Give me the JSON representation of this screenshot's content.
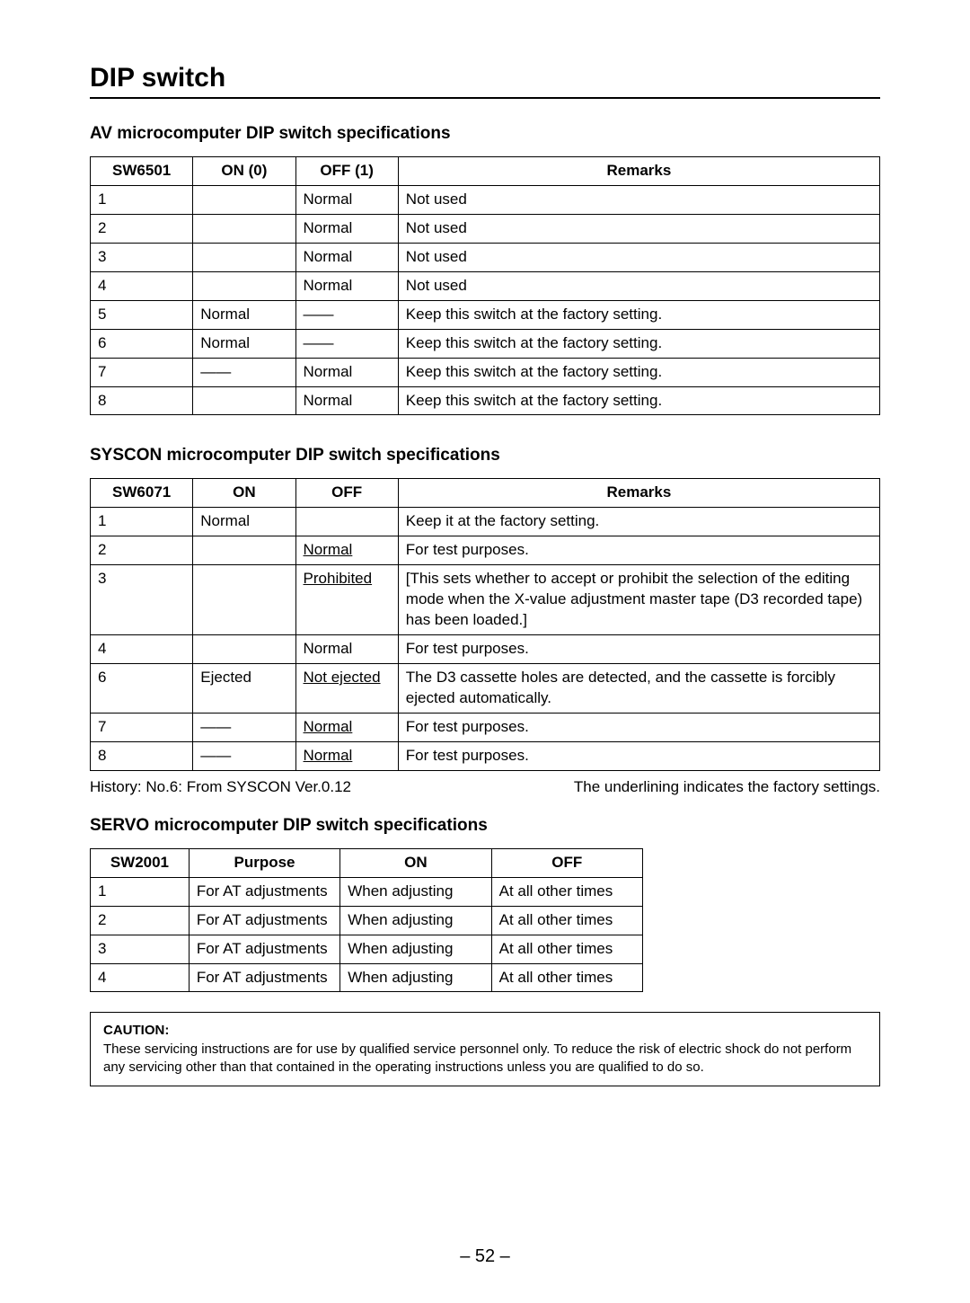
{
  "title": "DIP switch",
  "pageNumber": "– 52 –",
  "av": {
    "heading": "AV microcomputer DIP switch specifications",
    "headers": [
      "SW6501",
      "ON (0)",
      "OFF (1)",
      "Remarks"
    ],
    "rows": [
      {
        "n": "1",
        "on": "",
        "off": "Normal",
        "rem": "Not used",
        "offU": false
      },
      {
        "n": "2",
        "on": "",
        "off": "Normal",
        "rem": "Not used",
        "offU": false
      },
      {
        "n": "3",
        "on": "",
        "off": "Normal",
        "rem": "Not used",
        "offU": false
      },
      {
        "n": "4",
        "on": "",
        "off": "Normal",
        "rem": "Not used",
        "offU": false
      },
      {
        "n": "5",
        "on": "Normal",
        "off": "——",
        "rem": "Keep this switch at the factory setting.",
        "offU": false
      },
      {
        "n": "6",
        "on": "Normal",
        "off": "——",
        "rem": "Keep this switch at the factory setting.",
        "offU": false
      },
      {
        "n": "7",
        "on": "——",
        "off": "Normal",
        "rem": "Keep this switch at the factory setting.",
        "offU": false
      },
      {
        "n": "8",
        "on": "",
        "off": "Normal",
        "rem": "Keep this switch at the factory setting.",
        "offU": false
      }
    ]
  },
  "syscon": {
    "heading": "SYSCON microcomputer DIP switch specifications",
    "headers": [
      "SW6071",
      "ON",
      "OFF",
      "Remarks"
    ],
    "rows": [
      {
        "n": "1",
        "on": "Normal",
        "off": "",
        "rem": "Keep it at the factory setting.",
        "onU": false,
        "offU": false
      },
      {
        "n": "2",
        "on": "",
        "off": "Normal",
        "rem": "For test purposes.",
        "onU": false,
        "offU": true
      },
      {
        "n": "3",
        "on": "",
        "off": "Prohibited",
        "rem": "[This sets whether to accept or prohibit the selection of the editing mode when the X-value adjustment master tape (D3 recorded tape) has been loaded.]",
        "onU": false,
        "offU": true
      },
      {
        "n": "4",
        "on": "",
        "off": "Normal",
        "rem": "For test purposes.",
        "onU": false,
        "offU": false
      },
      {
        "n": "6",
        "on": "Ejected",
        "off": "Not ejected",
        "rem": "The D3 cassette holes are detected, and the cassette is forcibly ejected automatically.",
        "onU": false,
        "offU": true
      },
      {
        "n": "7",
        "on": "——",
        "off": "Normal",
        "rem": "For test purposes.",
        "onU": false,
        "offU": true
      },
      {
        "n": "8",
        "on": "——",
        "off": "Normal",
        "rem": "For test purposes.",
        "onU": false,
        "offU": true
      }
    ],
    "noteLeft": "History:  No.6:  From SYSCON Ver.0.12",
    "noteRight": "The underlining indicates the factory settings."
  },
  "servo": {
    "heading": "SERVO microcomputer DIP switch specifications",
    "headers": [
      "SW2001",
      "Purpose",
      "ON",
      "OFF"
    ],
    "rows": [
      {
        "n": "1",
        "p": "For AT adjustments",
        "on": "When adjusting",
        "off": "At all other times"
      },
      {
        "n": "2",
        "p": "For AT adjustments",
        "on": "When adjusting",
        "off": "At all other times"
      },
      {
        "n": "3",
        "p": "For AT adjustments",
        "on": "When adjusting",
        "off": "At all other times"
      },
      {
        "n": "4",
        "p": "For AT adjustments",
        "on": "When adjusting",
        "off": "At all other times"
      }
    ]
  },
  "caution": {
    "title": "CAUTION:",
    "text": "These servicing instructions are for use by qualified service personnel only. To reduce the risk of electric shock do not perform any servicing other than that contained in the operating instructions unless you are qualified to do so."
  }
}
